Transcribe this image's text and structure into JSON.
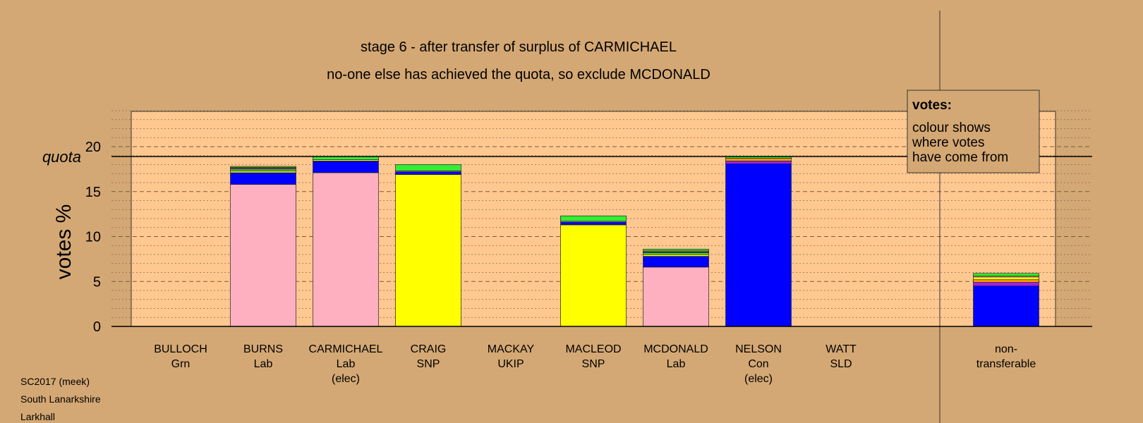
{
  "chart_data": {
    "type": "bar",
    "stacked": true,
    "title": "stage 6 - after transfer of surplus of CARMICHAEL",
    "subtitle": "no-one else has achieved the quota, so exclude MCDONALD",
    "ylabel": "votes %",
    "ylim": [
      0,
      24
    ],
    "yticks": [
      0,
      5,
      10,
      15,
      20
    ],
    "quota_label": "quota",
    "quota": 18.9,
    "grid": true,
    "candidates": [
      {
        "name": "BULLOCH",
        "party": "Grn",
        "status": "",
        "segments": []
      },
      {
        "name": "BURNS",
        "party": "Lab",
        "status": "",
        "segments": [
          {
            "from": "Lab",
            "value": 15.8,
            "color": "#ffb0c0"
          },
          {
            "from": "Con",
            "value": 1.3,
            "color": "#0000ff"
          },
          {
            "from": "SNP",
            "value": 0.2,
            "color": "#ffff00"
          },
          {
            "from": "Grn",
            "value": 0.2,
            "color": "#33ee33"
          },
          {
            "from": "UKIP",
            "value": 0.1,
            "color": "#a020f0"
          },
          {
            "from": "SLD",
            "value": 0.1,
            "color": "#ff9900"
          },
          {
            "from": "Grn",
            "value": 0.1,
            "color": "#33ee33"
          }
        ]
      },
      {
        "name": "CARMICHAEL",
        "party": "Lab",
        "status": "(elec)",
        "segments": [
          {
            "from": "Lab",
            "value": 17.1,
            "color": "#ffb0c0"
          },
          {
            "from": "Con",
            "value": 1.3,
            "color": "#0000ff"
          },
          {
            "from": "SNP",
            "value": 0.15,
            "color": "#ffff00"
          },
          {
            "from": "Grn",
            "value": 0.35,
            "color": "#33ee33"
          }
        ]
      },
      {
        "name": "CRAIG",
        "party": "SNP",
        "status": "",
        "segments": [
          {
            "from": "SNP",
            "value": 16.9,
            "color": "#ffff00"
          },
          {
            "from": "Con",
            "value": 0.3,
            "color": "#0000ff"
          },
          {
            "from": "Lab",
            "value": 0.1,
            "color": "#ffb0c0"
          },
          {
            "from": "Grn",
            "value": 0.7,
            "color": "#33ee33"
          }
        ]
      },
      {
        "name": "MACKAY",
        "party": "UKIP",
        "status": "",
        "segments": []
      },
      {
        "name": "MACLEOD",
        "party": "SNP",
        "status": "",
        "segments": [
          {
            "from": "SNP",
            "value": 11.3,
            "color": "#ffff00"
          },
          {
            "from": "Con",
            "value": 0.3,
            "color": "#0000ff"
          },
          {
            "from": "Lab",
            "value": 0.1,
            "color": "#ffb0c0"
          },
          {
            "from": "Grn",
            "value": 0.6,
            "color": "#33ee33"
          }
        ]
      },
      {
        "name": "MCDONALD",
        "party": "Lab",
        "status": "",
        "segments": [
          {
            "from": "Lab",
            "value": 6.6,
            "color": "#ffb0c0"
          },
          {
            "from": "Con",
            "value": 1.2,
            "color": "#0000ff"
          },
          {
            "from": "SNP",
            "value": 0.2,
            "color": "#ffff00"
          },
          {
            "from": "Grn",
            "value": 0.2,
            "color": "#33ee33"
          },
          {
            "from": "UKIP",
            "value": 0.1,
            "color": "#a020f0"
          },
          {
            "from": "SLD",
            "value": 0.1,
            "color": "#ff9900"
          },
          {
            "from": "Grn",
            "value": 0.2,
            "color": "#33ee33"
          }
        ]
      },
      {
        "name": "NELSON",
        "party": "Con",
        "status": "(elec)",
        "segments": [
          {
            "from": "Con",
            "value": 18.1,
            "color": "#0000ff"
          },
          {
            "from": "UKIP",
            "value": 0.3,
            "color": "#a020f0"
          },
          {
            "from": "SLD",
            "value": 0.3,
            "color": "#ff9900"
          },
          {
            "from": "Grn",
            "value": 0.2,
            "color": "#33ee33"
          }
        ]
      },
      {
        "name": "WATT",
        "party": "SLD",
        "status": "",
        "segments": []
      },
      {
        "name": "non-",
        "party": "transferable",
        "status": "",
        "segments": [
          {
            "from": "Con",
            "value": 4.5,
            "color": "#0000ff"
          },
          {
            "from": "UKIP",
            "value": 0.4,
            "color": "#a020f0"
          },
          {
            "from": "SLD",
            "value": 0.3,
            "color": "#ff9900"
          },
          {
            "from": "SNP",
            "value": 0.3,
            "color": "#ffff00"
          },
          {
            "from": "Lab",
            "value": 0.1,
            "color": "#ffb0c0"
          },
          {
            "from": "Grn",
            "value": 0.3,
            "color": "#33ee33"
          }
        ]
      }
    ],
    "legend": {
      "title": "votes:",
      "lines": [
        "colour shows",
        "where votes",
        "have come from"
      ],
      "placement": "top-right"
    }
  },
  "footer": {
    "lines": [
      "SC2017 (meek)",
      "South Lanarkshire",
      "Larkhall"
    ]
  },
  "colors": {
    "background": "#d4a874",
    "plot_area": "#ffc890"
  }
}
